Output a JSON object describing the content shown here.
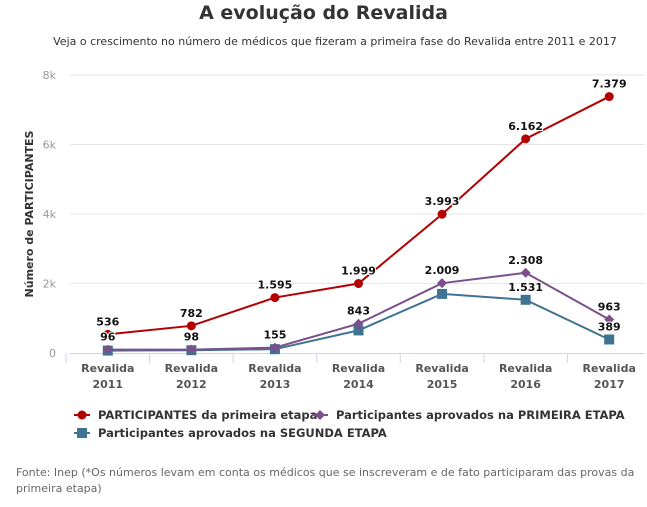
{
  "chart_data": {
    "type": "line",
    "title": "A evolução do Revalida",
    "subtitle": "Veja o crescimento no número de médicos que fizeram a primeira fase do Revalida entre 2011 e 2017",
    "xlabel": "",
    "ylabel": "Número de PARTICIPANTES",
    "ylim": [
      0,
      8000
    ],
    "yticks": [
      0,
      2000,
      4000,
      6000,
      8000
    ],
    "ytick_labels": [
      "0",
      "2k",
      "4k",
      "6k",
      "8k"
    ],
    "grid": true,
    "legend_position": "bottom",
    "categories": [
      [
        "Revalida",
        "2011"
      ],
      [
        "Revalida",
        "2012"
      ],
      [
        "Revalida",
        "2013"
      ],
      [
        "Revalida",
        "2014"
      ],
      [
        "Revalida",
        "2015"
      ],
      [
        "Revalida",
        "2016"
      ],
      [
        "Revalida",
        "2017"
      ]
    ],
    "series": [
      {
        "name": "PARTICIPANTES da primeira etapa",
        "color": "#b30000",
        "marker": "circle",
        "values": [
          536,
          782,
          1595,
          1999,
          3993,
          6162,
          7379
        ],
        "labels": [
          "536",
          "782",
          "1.595",
          "1.999",
          "3.993",
          "6.162",
          "7.379"
        ]
      },
      {
        "name": "Participantes aprovados na PRIMEIRA ETAPA",
        "color": "#7b4f8c",
        "marker": "diamond",
        "values": [
          96,
          98,
          155,
          843,
          2009,
          2308,
          963
        ],
        "labels": [
          "96",
          "98",
          "155",
          "843",
          "2.009",
          "2.308",
          "963"
        ]
      },
      {
        "name": "Participantes aprovados na SEGUNDA ETAPA",
        "color": "#3f7391",
        "marker": "square",
        "values": [
          70,
          80,
          110,
          650,
          1700,
          1531,
          389
        ],
        "labels": [
          null,
          null,
          null,
          null,
          null,
          "1.531",
          "389"
        ]
      }
    ],
    "source": "Fonte: Inep (*Os números levam em conta os médicos que se inscreveram e de fato participaram das provas da primeira etapa)"
  }
}
